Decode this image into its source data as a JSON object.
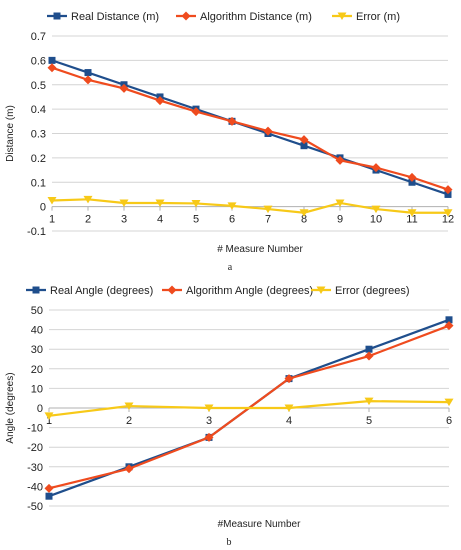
{
  "colors": {
    "real": "#1f4e8c",
    "algorithm": "#ef4b1e",
    "error": "#f7c918"
  },
  "chart_data": [
    {
      "type": "line",
      "x": [
        1,
        2,
        3,
        4,
        5,
        6,
        7,
        8,
        9,
        10,
        11,
        12
      ],
      "series": [
        {
          "name": "Real Distance (m)",
          "marker": "square",
          "values": [
            0.6,
            0.55,
            0.5,
            0.45,
            0.4,
            0.35,
            0.3,
            0.25,
            0.2,
            0.15,
            0.1,
            0.05
          ]
        },
        {
          "name": "Algorithm Distance (m)",
          "marker": "diamond",
          "values": [
            0.57,
            0.52,
            0.485,
            0.435,
            0.39,
            0.35,
            0.31,
            0.275,
            0.19,
            0.16,
            0.12,
            0.07
          ]
        },
        {
          "name": "Error (m)",
          "marker": "triangle-down",
          "values": [
            0.025,
            0.03,
            0.015,
            0.015,
            0.013,
            0.003,
            -0.01,
            -0.025,
            0.015,
            -0.01,
            -0.025,
            -0.025
          ]
        }
      ],
      "xlabel": "# Measure Number",
      "ylabel": "Distance (m)",
      "ylim": [
        -0.1,
        0.7
      ],
      "yticks": [
        -0.1,
        0,
        0.1,
        0.2,
        0.3,
        0.4,
        0.5,
        0.6,
        0.7
      ],
      "ytick_labels": [
        "-0.1",
        "0",
        "0.1",
        "0.2",
        "0.3",
        "0.4",
        "0.5",
        "0.6",
        "0.7"
      ],
      "grid": true,
      "legend": "top",
      "caption": "a"
    },
    {
      "type": "line",
      "x": [
        1,
        2,
        3,
        4,
        5,
        6
      ],
      "series": [
        {
          "name": "Real Angle (degrees)",
          "marker": "square",
          "values": [
            -45,
            -30,
            -15,
            15,
            30,
            45
          ]
        },
        {
          "name": "Algorithm Angle (degrees)",
          "marker": "diamond",
          "values": [
            -41,
            -31,
            -15,
            15,
            26.5,
            42
          ]
        },
        {
          "name": "Error (degrees)",
          "marker": "triangle-down",
          "values": [
            -4,
            1,
            0,
            0,
            3.5,
            3
          ]
        }
      ],
      "xlabel": "#Measure Number",
      "ylabel": "Angle (degrees)",
      "ylim": [
        -50,
        50
      ],
      "yticks": [
        -50,
        -40,
        -30,
        -20,
        -10,
        0,
        10,
        20,
        30,
        40,
        50
      ],
      "ytick_labels": [
        "-50",
        "-40",
        "-30",
        "-20",
        "-10",
        "0",
        "10",
        "20",
        "30",
        "40",
        "50"
      ],
      "grid": true,
      "legend": "top",
      "caption": "b"
    }
  ]
}
